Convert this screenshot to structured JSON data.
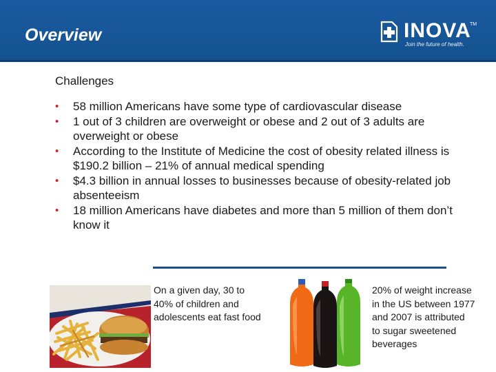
{
  "header": {
    "title": "Overview",
    "logo_text": "INOVA",
    "logo_tm": "TM",
    "logo_tagline": "Join the future of health.",
    "background_color": "#14528f"
  },
  "content": {
    "heading": "Challenges",
    "bullet_glyph": "•",
    "bullet_color": "#d3212a",
    "bullets": [
      "58 million Americans have some type of cardiovascular disease",
      "1 out of 3 children are overweight or obese and 2 out of 3 adults are overweight or obese",
      "According to the Institute of Medicine the cost of obesity related illness is $190.2 billion – 21% of annual medical spending",
      "$4.3 billion in annual losses to businesses because of obesity-related job absenteeism",
      "18 million Americans have diabetes and more than 5 million of them don’t know it"
    ]
  },
  "captions": {
    "fast_food": "On a given day, 30 to 40% of children and adolescents eat fast food",
    "beverages": "20% of weight increase in the US between 1977 and 2007 is attributed to sugar sweetened beverages"
  },
  "images": {
    "fast_food": "fries-and-burger-photo",
    "beverages": "soda-bottles-photo"
  }
}
